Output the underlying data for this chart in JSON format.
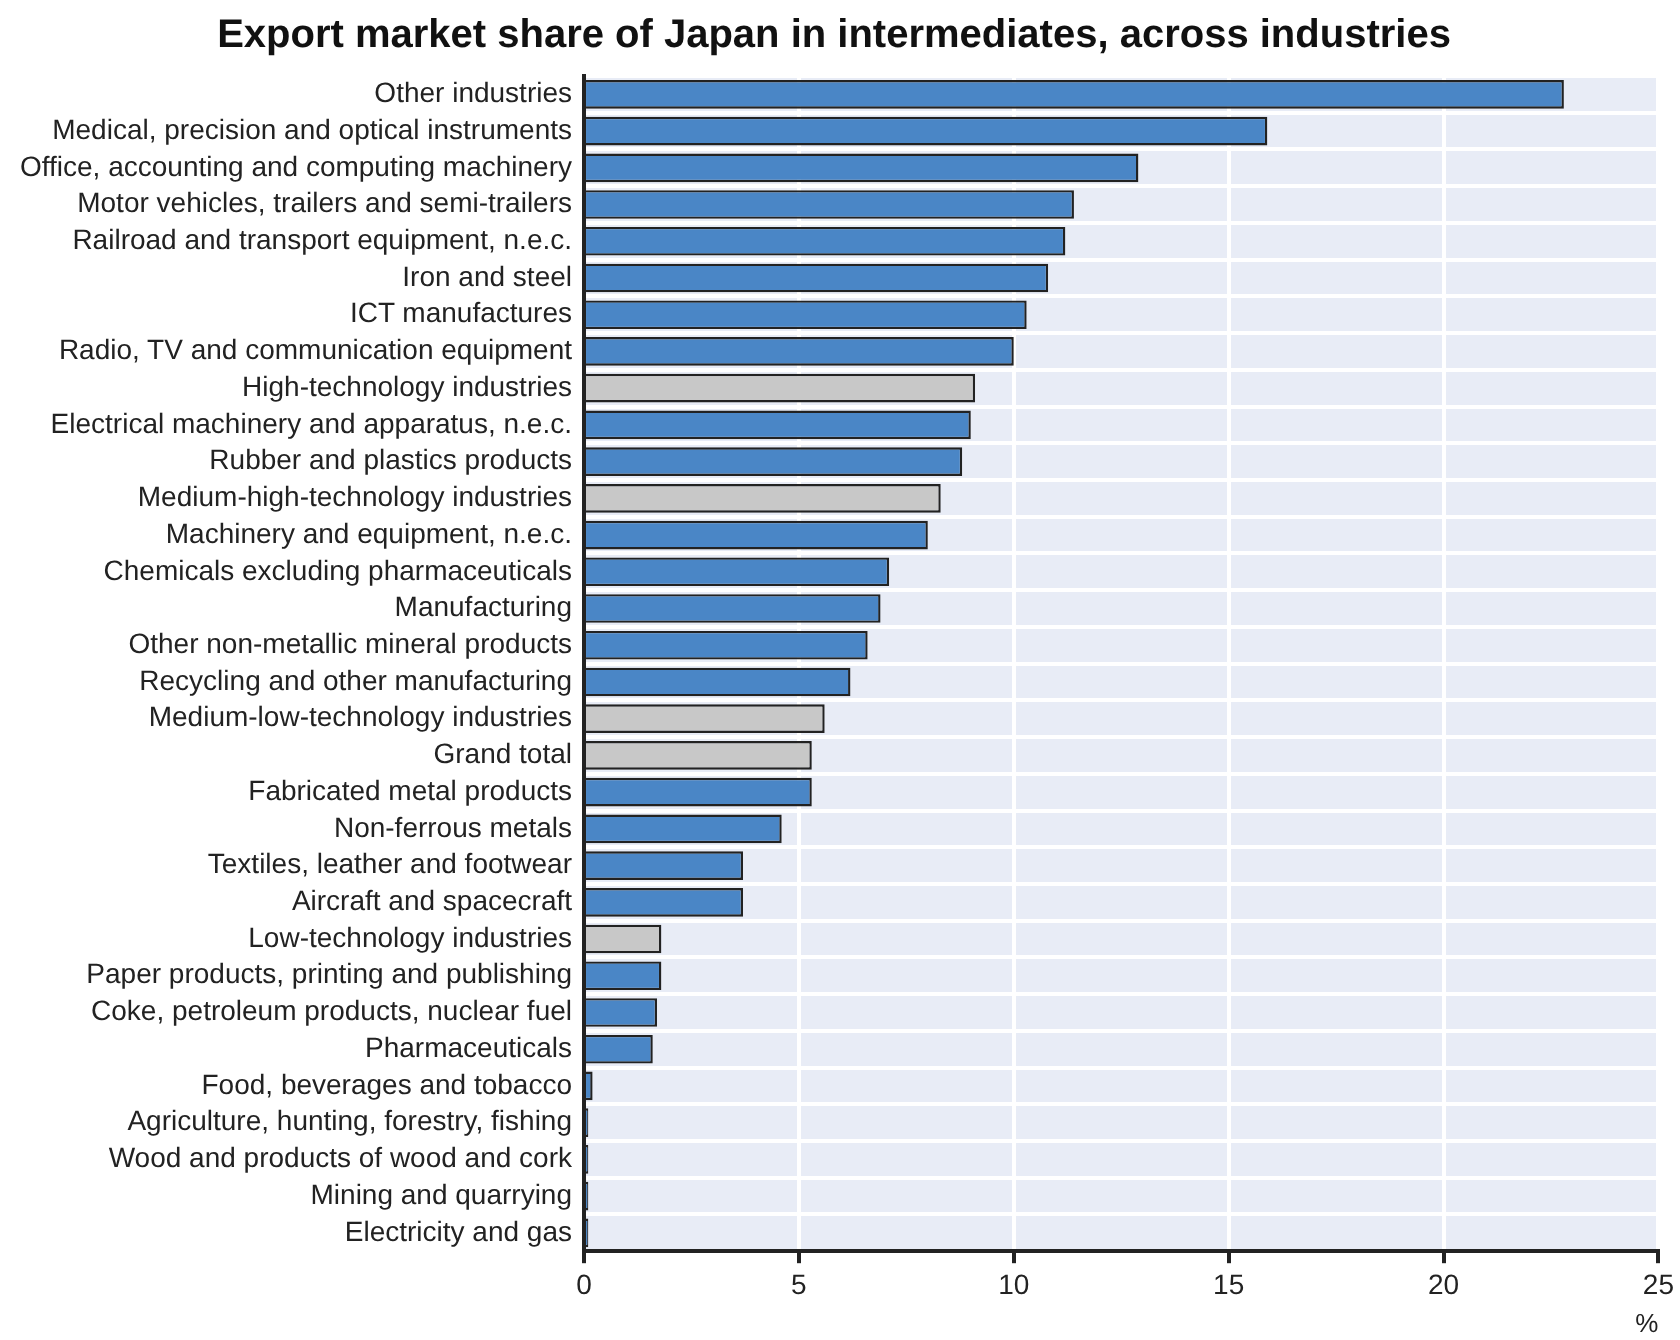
{
  "chart_data": {
    "type": "bar",
    "orientation": "horizontal",
    "title": "Export market share of Japan in intermediates, across industries",
    "xlabel": "%",
    "categories": [
      "Other industries",
      "Medical, precision and optical instruments",
      "Office, accounting and computing machinery",
      "Motor vehicles, trailers and semi-trailers",
      "Railroad and transport equipment, n.e.c.",
      "Iron and steel",
      "ICT manufactures",
      "Radio, TV and communication equipment",
      "High-technology industries",
      "Electrical machinery and apparatus, n.e.c.",
      "Rubber and plastics products",
      "Medium-high-technology industries",
      "Machinery and equipment, n.e.c.",
      "Chemicals excluding pharmaceuticals",
      "Manufacturing",
      "Other non-metallic mineral products",
      "Recycling and other manufacturing",
      "Medium-low-technology industries",
      "Grand total",
      "Fabricated metal products",
      "Non-ferrous metals",
      "Textiles, leather and footwear",
      "Aircraft and spacecraft",
      "Low-technology industries",
      "Paper products, printing and publishing",
      "Coke, petroleum products, nuclear fuel",
      "Pharmaceuticals",
      "Food, beverages and tobacco",
      "Agriculture, hunting, forestry, fishing",
      "Wood and products of wood and cork",
      "Mining and quarrying",
      "Electricity and gas"
    ],
    "values": [
      22.8,
      15.9,
      12.9,
      11.4,
      11.2,
      10.8,
      10.3,
      10.0,
      9.1,
      9.0,
      8.8,
      8.3,
      8.0,
      7.1,
      6.9,
      6.6,
      6.2,
      5.6,
      5.3,
      5.3,
      4.6,
      3.7,
      3.7,
      1.8,
      1.8,
      1.7,
      1.6,
      0.2,
      0.1,
      0.1,
      0.1,
      0.1
    ],
    "colors": [
      "#4a86c6",
      "#4a86c6",
      "#4a86c6",
      "#4a86c6",
      "#4a86c6",
      "#4a86c6",
      "#4a86c6",
      "#4a86c6",
      "#c8c8c8",
      "#4a86c6",
      "#4a86c6",
      "#c8c8c8",
      "#4a86c6",
      "#4a86c6",
      "#4a86c6",
      "#4a86c6",
      "#4a86c6",
      "#c8c8c8",
      "#c8c8c8",
      "#4a86c6",
      "#4a86c6",
      "#4a86c6",
      "#4a86c6",
      "#c8c8c8",
      "#4a86c6",
      "#4a86c6",
      "#4a86c6",
      "#4a86c6",
      "#4a86c6",
      "#4a86c6",
      "#4a86c6",
      "#4a86c6"
    ],
    "xlim": [
      0,
      25
    ],
    "xticks": [
      0,
      5,
      10,
      15,
      20,
      25
    ],
    "grid": true
  }
}
